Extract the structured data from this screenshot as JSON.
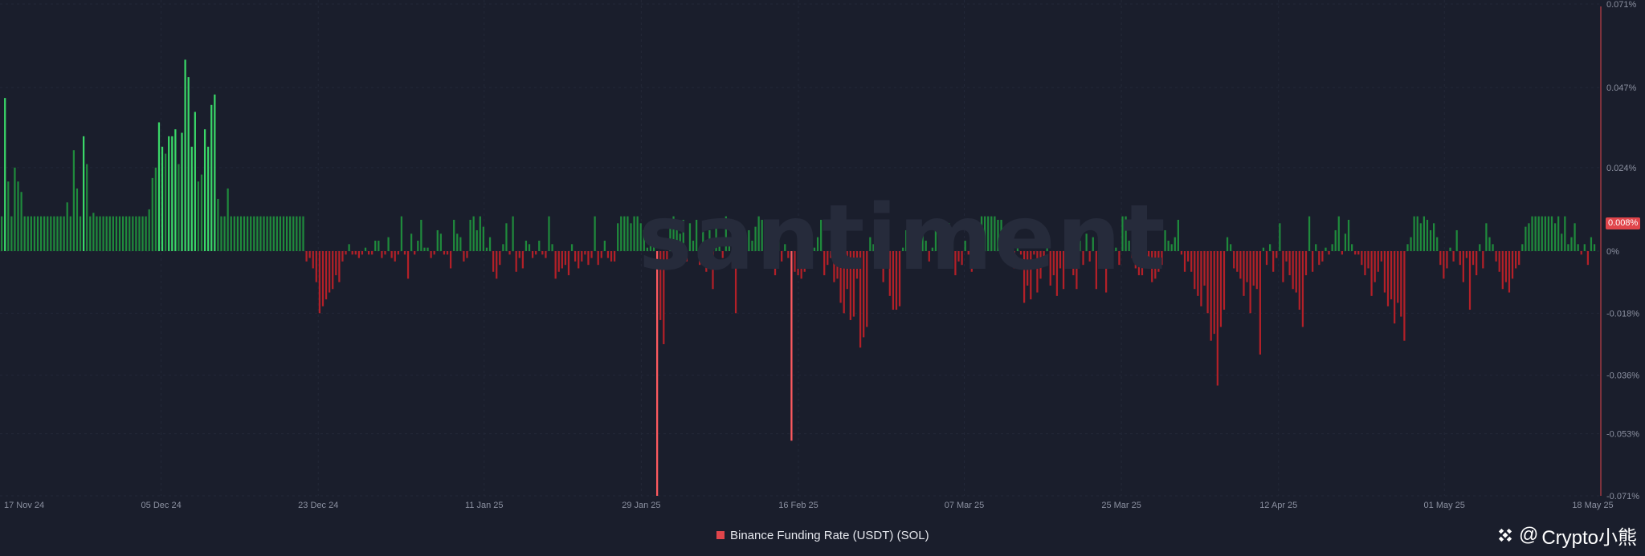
{
  "watermark": "santiment",
  "brand": {
    "prefix": "@",
    "name": "Crypto小熊"
  },
  "legend": {
    "label": "Binance Funding Rate (USDT) (SOL)",
    "color": "#e0454b"
  },
  "current_value_label": "0.008%",
  "colors": {
    "background": "#1a1e2c",
    "positive": "#1f8a3c",
    "positive_bright": "#3ad768",
    "negative": "#b32028",
    "negative_bright": "#ff5a5f",
    "axis_line": "#e0454b",
    "tick_text": "#8b90a0"
  },
  "chart_data": {
    "type": "bar",
    "title": "",
    "xlabel": "",
    "ylabel": "",
    "ylim": [
      -0.071,
      0.071
    ],
    "x_tick_labels": [
      "17 Nov 24",
      "05 Dec 24",
      "23 Dec 24",
      "11 Jan 25",
      "29 Jan 25",
      "16 Feb 25",
      "07 Mar 25",
      "25 Mar 25",
      "12 Apr 25",
      "01 May 25",
      "18 May 25"
    ],
    "y_tick_labels": [
      "0.071%",
      "0.047%",
      "0.024%",
      "0%",
      "-0.018%",
      "-0.036%",
      "-0.053%",
      "-0.071%"
    ],
    "y_tick_values": [
      0.071,
      0.047,
      0.024,
      0,
      -0.018,
      -0.036,
      -0.053,
      -0.071
    ],
    "x_start": "2024-11-17",
    "x_end": "2025-05-18",
    "x_ticks": [
      "2024-11-17",
      "2024-12-05",
      "2024-12-23",
      "2025-01-11",
      "2025-01-29",
      "2025-02-16",
      "2025-03-07",
      "2025-03-25",
      "2025-04-12",
      "2025-05-01",
      "2025-05-18"
    ],
    "series": [
      {
        "name": "Binance Funding Rate (USDT) (SOL)",
        "interval": "8h",
        "values": [
          0.01,
          0.044,
          0.02,
          0.01,
          0.024,
          0.02,
          0.017,
          0.01,
          0.01,
          0.01,
          0.01,
          0.01,
          0.01,
          0.01,
          0.01,
          0.01,
          0.01,
          0.01,
          0.01,
          0.01,
          0.014,
          0.01,
          0.029,
          0.018,
          0.01,
          0.033,
          0.025,
          0.01,
          0.011,
          0.01,
          0.01,
          0.01,
          0.01,
          0.01,
          0.01,
          0.01,
          0.01,
          0.01,
          0.01,
          0.01,
          0.01,
          0.01,
          0.01,
          0.01,
          0.01,
          0.012,
          0.021,
          0.024,
          0.037,
          0.03,
          0.028,
          0.033,
          0.033,
          0.035,
          0.025,
          0.034,
          0.055,
          0.05,
          0.03,
          0.04,
          0.02,
          0.022,
          0.035,
          0.03,
          0.042,
          0.045,
          0.015,
          0.01,
          0.01,
          0.018,
          0.01,
          0.01,
          0.01,
          0.01,
          0.01,
          0.01,
          0.01,
          0.01,
          0.01,
          0.01,
          0.01,
          0.01,
          0.01,
          0.01,
          0.01,
          0.01,
          0.01,
          0.01,
          0.01,
          0.01,
          0.01,
          0.01,
          0.01,
          -0.003,
          -0.002,
          -0.005,
          -0.009,
          -0.018,
          -0.016,
          -0.014,
          -0.012,
          -0.011,
          -0.007,
          -0.009,
          -0.003,
          -0.001,
          0.002,
          -0.001,
          -0.001,
          -0.002,
          -0.001,
          0.001,
          -0.001,
          -0.001,
          0.003,
          0.003,
          -0.002,
          -0.001,
          0.004,
          -0.002,
          -0.003,
          -0.001,
          0.01,
          -0.001,
          -0.008,
          0.005,
          -0.001,
          0.003,
          0.009,
          0.001,
          0.001,
          -0.002,
          -0.001,
          0.006,
          0.005,
          -0.001,
          -0.001,
          -0.005,
          0.009,
          0.005,
          0.004,
          -0.003,
          -0.002,
          0.009,
          0.01,
          0.006,
          0.01,
          0.007,
          0.001,
          0.004,
          -0.006,
          -0.008,
          -0.004,
          0.002,
          0.008,
          -0.001,
          0.01,
          -0.006,
          -0.002,
          -0.005,
          0.003,
          0.002,
          -0.002,
          -0.001,
          0.003,
          -0.001,
          -0.002,
          0.01,
          0.002,
          -0.008,
          -0.006,
          -0.005,
          -0.004,
          -0.007,
          0.002,
          -0.003,
          -0.005,
          -0.003,
          -0.001,
          -0.004,
          -0.002,
          0.01,
          -0.004,
          -0.002,
          0.003,
          -0.002,
          -0.003,
          -0.003,
          0.008,
          0.01,
          0.01,
          0.01,
          0.008,
          0.01,
          0.01,
          0.008,
          0.006,
          0.001,
          0.004,
          0.009,
          -0.071,
          -0.02,
          -0.027,
          -0.003,
          0.008,
          0.01,
          0.009,
          0.005,
          0.009,
          -0.003,
          0.008,
          0.003,
          0.009,
          -0.004,
          0.008,
          -0.006,
          0.006,
          -0.011,
          0.009,
          0.003,
          -0.002,
          0.01,
          0.002,
          -0.005,
          -0.018,
          0.003,
          0.004,
          -0.001,
          0.006,
          0.003,
          0.007,
          0.01,
          0.009,
          0.001,
          -0.004,
          0.003,
          -0.007,
          0.006,
          -0.003,
          0.002,
          -0.002,
          -0.055,
          -0.006,
          -0.007,
          -0.008,
          -0.006,
          -0.005,
          -0.003,
          0.001,
          0.004,
          0.009,
          -0.007,
          -0.004,
          -0.002,
          -0.009,
          -0.008,
          -0.015,
          -0.018,
          -0.011,
          -0.02,
          -0.019,
          -0.008,
          -0.028,
          -0.025,
          -0.022,
          0.004,
          0.002,
          -0.005,
          -0.004,
          -0.009,
          0.002,
          -0.013,
          -0.017,
          -0.017,
          -0.016,
          0.001,
          0.006,
          -0.001,
          -0.003,
          -0.002,
          0.002,
          0.006,
          0.003,
          -0.003,
          0.001,
          0.007,
          0.002,
          -0.004,
          0.006,
          0.008,
          -0.004,
          -0.007,
          -0.003,
          -0.004,
          0.003,
          -0.001,
          -0.006,
          -0.003,
          -0.004,
          0.01,
          0.01,
          0.01,
          0.01,
          0.01,
          0.009,
          0.009,
          0.007,
          0.002,
          -0.001,
          -0.005,
          0.003,
          -0.001,
          -0.015,
          -0.01,
          -0.014,
          -0.001,
          -0.012,
          -0.008,
          -0.004,
          0.003,
          -0.01,
          -0.007,
          -0.013,
          -0.005,
          -0.011,
          0.002,
          0.001,
          -0.007,
          -0.011,
          0.003,
          -0.004,
          0.005,
          -0.003,
          0.004,
          -0.011,
          0.004,
          0.003,
          -0.012,
          0.007,
          0.004,
          0.001,
          -0.004,
          0.01,
          0.01,
          0.003,
          -0.002,
          -0.005,
          -0.007,
          -0.007,
          -0.005,
          -0.003,
          -0.009,
          -0.008,
          -0.006,
          -0.004,
          0.006,
          0.003,
          0.002,
          0.004,
          0.009,
          -0.001,
          -0.006,
          -0.003,
          -0.006,
          -0.011,
          -0.013,
          -0.016,
          -0.01,
          -0.018,
          -0.026,
          -0.024,
          -0.039,
          -0.022,
          -0.017,
          0.004,
          0.002,
          -0.005,
          -0.006,
          -0.008,
          -0.013,
          -0.009,
          -0.018,
          -0.01,
          -0.011,
          -0.03,
          0.001,
          -0.004,
          0.002,
          -0.006,
          -0.002,
          0.008,
          -0.009,
          -0.003,
          -0.007,
          -0.011,
          -0.012,
          -0.017,
          -0.022,
          -0.007,
          0.01,
          -0.006,
          0.002,
          -0.004,
          -0.003,
          0.001,
          -0.001,
          0.002,
          0.006,
          0.01,
          -0.001,
          0.005,
          0.009,
          0.002,
          -0.001,
          -0.001,
          -0.004,
          -0.007,
          -0.005,
          -0.013,
          -0.009,
          -0.006,
          -0.003,
          -0.012,
          -0.016,
          -0.014,
          -0.021,
          -0.015,
          -0.019,
          -0.026,
          0.002,
          0.004,
          0.01,
          0.01,
          0.008,
          0.01,
          0.009,
          0.006,
          0.008,
          0.004,
          -0.004,
          -0.008,
          -0.005,
          0.001,
          -0.003,
          0.006,
          -0.004,
          -0.009,
          -0.002,
          -0.017,
          -0.004,
          -0.007,
          0.002,
          -0.005,
          0.008,
          0.004,
          0.002,
          -0.003,
          -0.006,
          -0.011,
          -0.009,
          -0.012,
          -0.008,
          -0.005,
          -0.004,
          0.002,
          0.007,
          0.008,
          0.01,
          0.01,
          0.01,
          0.01,
          0.01,
          0.01,
          0.01,
          0.008,
          0.01,
          0.005,
          0.01,
          0.002,
          0.004,
          0.008,
          0.002,
          -0.001,
          0.002,
          -0.004,
          0.004,
          0.002
        ]
      }
    ]
  }
}
